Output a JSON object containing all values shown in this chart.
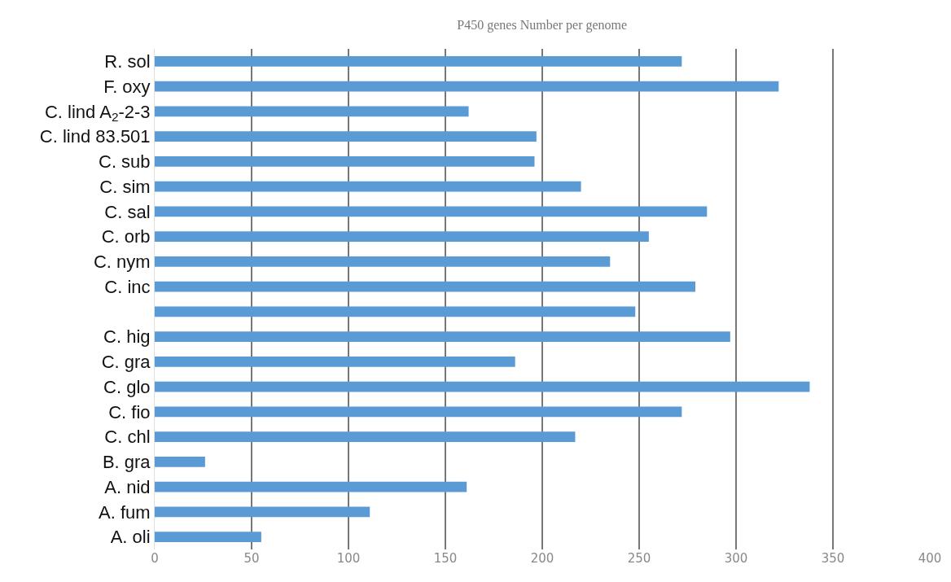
{
  "chart_data": {
    "type": "bar",
    "orientation": "horizontal",
    "title": "P450 genes Number per genome",
    "categories": [
      "R. sol",
      "F. oxy",
      "C. lind A$_{2}$-2-3",
      "C. lind 83.501",
      "C. sub",
      "C. sim",
      "C. sal",
      "C. orb",
      "C. nym",
      "C. inc",
      null,
      "C. hig",
      "C. gra",
      "C. glo",
      "C. fio",
      "C. chl",
      "B. gra",
      "A. nid",
      "A. fum",
      "A. oli"
    ],
    "values": [
      272,
      322,
      162,
      197,
      196,
      220,
      285,
      255,
      235,
      279,
      248,
      297,
      186,
      338,
      272,
      217,
      26,
      161,
      111,
      55
    ],
    "color": "#5b9bd5",
    "xlim": [
      0,
      400
    ],
    "xticks": [
      0,
      50,
      100,
      150,
      200,
      250,
      300,
      350,
      400
    ],
    "grid": "x",
    "legend": false
  }
}
